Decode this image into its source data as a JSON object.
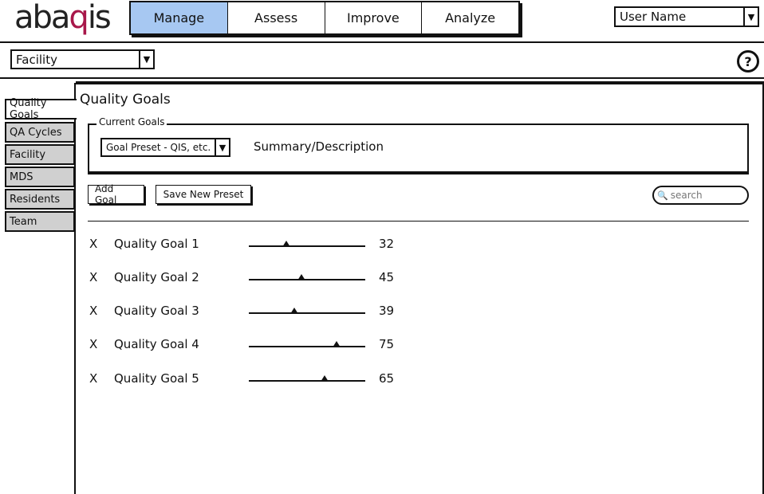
{
  "app": {
    "logo_parts": [
      "aba",
      "q",
      "is"
    ]
  },
  "nav": {
    "tabs": [
      {
        "label": "Manage",
        "active": true
      },
      {
        "label": "Assess",
        "active": false
      },
      {
        "label": "Improve",
        "active": false
      },
      {
        "label": "Analyze",
        "active": false
      }
    ]
  },
  "user_menu": {
    "value": "User Name"
  },
  "facility_select": {
    "value": "Facility"
  },
  "help": {
    "icon": "question-icon",
    "glyph": "?"
  },
  "sidebar": {
    "tabs": [
      {
        "label": "Quality Goals",
        "active": true
      },
      {
        "label": "QA Cycles",
        "active": false
      },
      {
        "label": "Facility",
        "active": false
      },
      {
        "label": "MDS",
        "active": false
      },
      {
        "label": "Residents",
        "active": false
      },
      {
        "label": "Team",
        "active": false
      }
    ]
  },
  "main": {
    "title": "Quality Goals",
    "current_goals": {
      "legend": "Current Goals",
      "preset_select": "Goal Preset - QIS, etc.",
      "summary": "Summary/Description"
    },
    "buttons": {
      "add_goal": "Add Goal",
      "save_preset": "Save New Preset"
    },
    "search": {
      "placeholder": "search"
    },
    "goals": [
      {
        "remove": "X",
        "label": "Quality Goal 1",
        "value": 32
      },
      {
        "remove": "X",
        "label": "Quality Goal 2",
        "value": 45
      },
      {
        "remove": "X",
        "label": "Quality Goal 3",
        "value": 39
      },
      {
        "remove": "X",
        "label": "Quality Goal 4",
        "value": 75
      },
      {
        "remove": "X",
        "label": "Quality Goal 5",
        "value": 65
      }
    ]
  },
  "colors": {
    "active_nav": "#a7c8f2",
    "logo_accent": "#a8174a",
    "inactive_tab": "#d0d0d0"
  }
}
